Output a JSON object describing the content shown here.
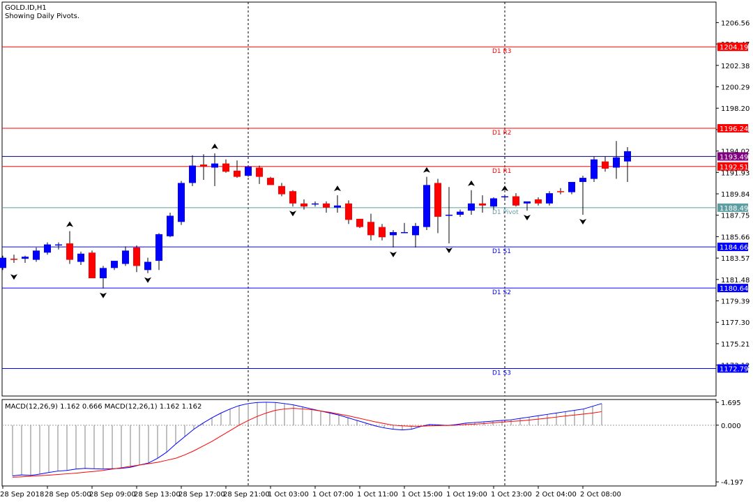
{
  "header": {
    "symbol": "GOLD.ID,H1",
    "subtitle": "Showing Daily Pivots."
  },
  "colors": {
    "bull": "#0000ff",
    "bear": "#ff0000",
    "resistance": "#ff0000",
    "support": "#0000ff",
    "pivot": "#5f9ea0",
    "price_badge": "#ff0000",
    "current_badge": "#800080",
    "macd_line": "#0000ff",
    "signal_line": "#ff0000",
    "histogram": "#808080"
  },
  "chart_data": {
    "type": "candlestick",
    "price_axis": {
      "ticks": [
        "1206.56",
        "1204.47",
        "1202.38",
        "1200.29",
        "1198.20",
        "1196.11",
        "1194.02",
        "1191.93",
        "1189.84",
        "1187.75",
        "1185.66",
        "1183.57",
        "1181.48",
        "1179.39",
        "1177.30",
        "1175.21",
        "1173.12"
      ],
      "range": [
        1170.1,
        1208.56
      ]
    },
    "time_axis": {
      "labels": [
        "28 Sep 2018",
        "28 Sep 05:00",
        "28 Sep 09:00",
        "28 Sep 13:00",
        "28 Sep 17:00",
        "28 Sep 21:00",
        "1 Oct 03:00",
        "1 Oct 07:00",
        "1 Oct 11:00",
        "1 Oct 15:00",
        "1 Oct 19:00",
        "1 Oct 23:00",
        "2 Oct 04:00",
        "2 Oct 08:00"
      ],
      "period_separator_labels": [
        "28 Sep 21:00",
        "1 Oct 23:00"
      ]
    },
    "pivots": [
      {
        "label": "D1 R3",
        "value": 1204.19,
        "badge": "1204.19",
        "kind": "resistance"
      },
      {
        "label": "D1 R2",
        "value": 1196.24,
        "badge": "1196.24",
        "kind": "resistance"
      },
      {
        "label": "D1 R1",
        "value": 1192.51,
        "badge": "1192.51",
        "kind": "resistance"
      },
      {
        "label": "D1 Pivot",
        "value": 1188.49,
        "badge": "1188.49",
        "kind": "pivot"
      },
      {
        "label": "D1 S1",
        "value": 1184.66,
        "badge": "1184.66",
        "kind": "support"
      },
      {
        "label": "D1 S2",
        "value": 1180.64,
        "badge": "1180.64",
        "kind": "support"
      },
      {
        "label": "D1 S3",
        "value": 1172.79,
        "badge": "1172.79",
        "kind": "support"
      }
    ],
    "current_price": {
      "value": 1193.49,
      "badge": "1193.49"
    },
    "candles": [
      {
        "o": 1182.6,
        "h": 1183.8,
        "l": 1182.4,
        "c": 1183.6
      },
      {
        "o": 1183.5,
        "h": 1183.9,
        "l": 1183.1,
        "c": 1183.4
      },
      {
        "o": 1183.5,
        "h": 1183.8,
        "l": 1183.1,
        "c": 1183.7
      },
      {
        "o": 1183.4,
        "h": 1184.6,
        "l": 1183.2,
        "c": 1184.3
      },
      {
        "o": 1184.1,
        "h": 1185.1,
        "l": 1183.9,
        "c": 1184.9
      },
      {
        "o": 1184.9,
        "h": 1185.1,
        "l": 1184.4,
        "c": 1184.9
      },
      {
        "o": 1185.0,
        "h": 1186.2,
        "l": 1183.0,
        "c": 1183.4
      },
      {
        "o": 1183.2,
        "h": 1184.2,
        "l": 1182.9,
        "c": 1184.0
      },
      {
        "o": 1184.1,
        "h": 1184.3,
        "l": 1181.6,
        "c": 1181.6
      },
      {
        "o": 1181.6,
        "h": 1182.8,
        "l": 1180.6,
        "c": 1182.6
      },
      {
        "o": 1182.6,
        "h": 1183.3,
        "l": 1182.4,
        "c": 1183.3
      },
      {
        "o": 1183.0,
        "h": 1184.7,
        "l": 1182.8,
        "c": 1184.3
      },
      {
        "o": 1184.6,
        "h": 1184.8,
        "l": 1182.2,
        "c": 1182.8
      },
      {
        "o": 1182.4,
        "h": 1183.6,
        "l": 1182.1,
        "c": 1183.2
      },
      {
        "o": 1183.3,
        "h": 1186.0,
        "l": 1182.4,
        "c": 1185.9
      },
      {
        "o": 1185.7,
        "h": 1188.0,
        "l": 1185.6,
        "c": 1187.7
      },
      {
        "o": 1187.1,
        "h": 1191.1,
        "l": 1186.8,
        "c": 1190.9
      },
      {
        "o": 1190.9,
        "h": 1193.6,
        "l": 1190.6,
        "c": 1192.6
      },
      {
        "o": 1192.7,
        "h": 1193.7,
        "l": 1191.2,
        "c": 1192.5
      },
      {
        "o": 1192.4,
        "h": 1193.8,
        "l": 1190.6,
        "c": 1192.8
      },
      {
        "o": 1192.8,
        "h": 1193.2,
        "l": 1191.9,
        "c": 1192.0
      },
      {
        "o": 1192.1,
        "h": 1193.1,
        "l": 1191.4,
        "c": 1191.5
      },
      {
        "o": 1191.6,
        "h": 1192.6,
        "l": 1191.5,
        "c": 1192.5
      },
      {
        "o": 1192.4,
        "h": 1192.6,
        "l": 1190.8,
        "c": 1191.5
      },
      {
        "o": 1191.4,
        "h": 1191.5,
        "l": 1190.7,
        "c": 1190.7
      },
      {
        "o": 1190.6,
        "h": 1190.9,
        "l": 1189.6,
        "c": 1189.8
      },
      {
        "o": 1190.1,
        "h": 1190.2,
        "l": 1188.6,
        "c": 1188.9
      },
      {
        "o": 1188.9,
        "h": 1189.3,
        "l": 1188.3,
        "c": 1188.6
      },
      {
        "o": 1188.8,
        "h": 1189.1,
        "l": 1188.6,
        "c": 1188.9
      },
      {
        "o": 1188.9,
        "h": 1189.1,
        "l": 1188.0,
        "c": 1188.5
      },
      {
        "o": 1188.5,
        "h": 1189.7,
        "l": 1188.0,
        "c": 1188.7
      },
      {
        "o": 1188.9,
        "h": 1189.2,
        "l": 1186.9,
        "c": 1187.3
      },
      {
        "o": 1187.4,
        "h": 1187.4,
        "l": 1186.5,
        "c": 1186.6
      },
      {
        "o": 1187.1,
        "h": 1187.9,
        "l": 1185.3,
        "c": 1185.8
      },
      {
        "o": 1186.6,
        "h": 1186.9,
        "l": 1185.3,
        "c": 1185.6
      },
      {
        "o": 1185.8,
        "h": 1186.3,
        "l": 1184.6,
        "c": 1186.1
      },
      {
        "o": 1186.1,
        "h": 1187.0,
        "l": 1186.0,
        "c": 1186.1
      },
      {
        "o": 1185.8,
        "h": 1187.0,
        "l": 1184.6,
        "c": 1186.7
      },
      {
        "o": 1186.6,
        "h": 1191.5,
        "l": 1186.3,
        "c": 1190.7
      },
      {
        "o": 1190.9,
        "h": 1191.3,
        "l": 1186.0,
        "c": 1187.6
      },
      {
        "o": 1187.7,
        "h": 1190.5,
        "l": 1185.0,
        "c": 1187.8
      },
      {
        "o": 1187.8,
        "h": 1188.3,
        "l": 1187.6,
        "c": 1188.1
      },
      {
        "o": 1188.2,
        "h": 1190.2,
        "l": 1187.8,
        "c": 1188.9
      },
      {
        "o": 1188.9,
        "h": 1189.7,
        "l": 1188.0,
        "c": 1188.7
      },
      {
        "o": 1188.6,
        "h": 1189.5,
        "l": 1188.3,
        "c": 1189.4
      },
      {
        "o": 1189.5,
        "h": 1189.7,
        "l": 1189.2,
        "c": 1189.6
      },
      {
        "o": 1189.6,
        "h": 1189.9,
        "l": 1188.6,
        "c": 1188.7
      },
      {
        "o": 1188.9,
        "h": 1189.0,
        "l": 1188.2,
        "c": 1189.1
      },
      {
        "o": 1189.3,
        "h": 1189.5,
        "l": 1188.7,
        "c": 1188.9
      },
      {
        "o": 1188.9,
        "h": 1190.1,
        "l": 1188.7,
        "c": 1189.9
      },
      {
        "o": 1190.1,
        "h": 1190.4,
        "l": 1189.8,
        "c": 1190.0
      },
      {
        "o": 1190.0,
        "h": 1191.0,
        "l": 1189.8,
        "c": 1191.0
      },
      {
        "o": 1191.0,
        "h": 1191.6,
        "l": 1187.8,
        "c": 1191.4
      },
      {
        "o": 1191.3,
        "h": 1193.5,
        "l": 1191.0,
        "c": 1193.2
      },
      {
        "o": 1193.0,
        "h": 1193.5,
        "l": 1192.0,
        "c": 1192.3
      },
      {
        "o": 1192.4,
        "h": 1195.0,
        "l": 1191.3,
        "c": 1193.4
      },
      {
        "o": 1193.0,
        "h": 1194.4,
        "l": 1191.0,
        "c": 1194.0
      }
    ],
    "fractals": [
      {
        "index": 1,
        "dir": "down",
        "value": 1182.4
      },
      {
        "index": 6,
        "dir": "up",
        "value": 1186.2
      },
      {
        "index": 9,
        "dir": "down",
        "value": 1180.6
      },
      {
        "index": 13,
        "dir": "down",
        "value": 1182.1
      },
      {
        "index": 19,
        "dir": "up",
        "value": 1193.8
      },
      {
        "index": 26,
        "dir": "down",
        "value": 1188.6
      },
      {
        "index": 30,
        "dir": "up",
        "value": 1189.7
      },
      {
        "index": 35,
        "dir": "down",
        "value": 1184.6
      },
      {
        "index": 38,
        "dir": "up",
        "value": 1191.5
      },
      {
        "index": 40,
        "dir": "down",
        "value": 1185.0
      },
      {
        "index": 42,
        "dir": "up",
        "value": 1190.2
      },
      {
        "index": 45,
        "dir": "up",
        "value": 1189.7
      },
      {
        "index": 47,
        "dir": "down",
        "value": 1188.2
      },
      {
        "index": 52,
        "dir": "down",
        "value": 1187.8
      }
    ],
    "macd": {
      "label": "MACD(12,26,9) 1.162 0.666 MACD(12,26,1) 1.162 1.162",
      "ticks": [
        "1.695",
        "0.000",
        "-4.197"
      ],
      "range": [
        -4.5,
        1.9
      ],
      "macd": [
        -3.75,
        -3.68,
        -3.72,
        -3.62,
        -3.5,
        -3.4,
        -3.35,
        -3.25,
        -3.2,
        -3.22,
        -3.25,
        -3.22,
        -3.2,
        -3.12,
        -2.95,
        -2.8,
        -2.45,
        -2.0,
        -1.4,
        -0.85,
        -0.3,
        0.15,
        0.55,
        0.9,
        1.2,
        1.45,
        1.6,
        1.68,
        1.7,
        1.68,
        1.6,
        1.5,
        1.35,
        1.2,
        1.05,
        0.9,
        0.75,
        0.55,
        0.35,
        0.15,
        -0.05,
        -0.2,
        -0.3,
        -0.35,
        -0.3,
        -0.1,
        0.05,
        0.02,
        -0.02,
        0.05,
        0.15,
        0.2,
        0.25,
        0.3,
        0.35,
        0.4,
        0.5,
        0.6,
        0.7,
        0.8,
        0.9,
        1.0,
        1.1,
        1.2,
        1.4,
        1.6
      ],
      "signal": [
        -3.85,
        -3.82,
        -3.78,
        -3.74,
        -3.7,
        -3.65,
        -3.6,
        -3.55,
        -3.48,
        -3.42,
        -3.35,
        -3.25,
        -3.15,
        -3.05,
        -2.95,
        -2.85,
        -2.75,
        -2.6,
        -2.45,
        -2.2,
        -1.9,
        -1.55,
        -1.2,
        -0.8,
        -0.4,
        0.0,
        0.35,
        0.65,
        0.9,
        1.1,
        1.2,
        1.25,
        1.2,
        1.15,
        1.05,
        0.95,
        0.82,
        0.7,
        0.55,
        0.4,
        0.25,
        0.12,
        0.0,
        -0.05,
        -0.08,
        -0.08,
        -0.05,
        -0.03,
        -0.02,
        0.0,
        0.05,
        0.08,
        0.12,
        0.18,
        0.22,
        0.28,
        0.32,
        0.38,
        0.45,
        0.52,
        0.6,
        0.68,
        0.75,
        0.82,
        0.9,
        1.0
      ]
    }
  }
}
